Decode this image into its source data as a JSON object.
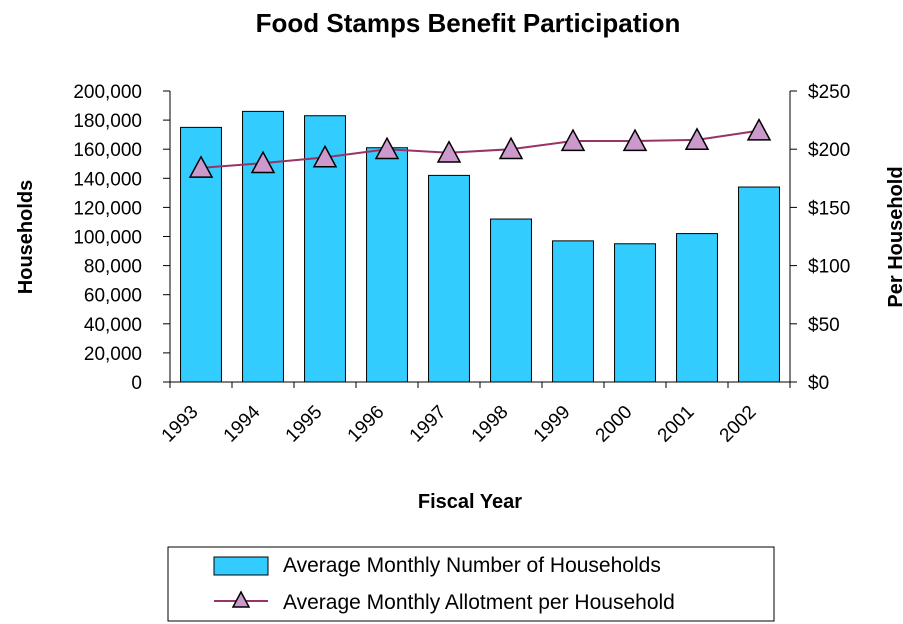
{
  "chart_data": {
    "type": "bar",
    "title": "Food Stamps Benefit Participation",
    "xlabel": "Fiscal Year",
    "ylabel": "Households",
    "y2label": "Per Household",
    "categories": [
      "1993",
      "1994",
      "1995",
      "1996",
      "1997",
      "1998",
      "1999",
      "2000",
      "2001",
      "2002"
    ],
    "ylim": [
      0,
      200000
    ],
    "y_ticks": [
      "200,000",
      "180,000",
      "160,000",
      "140,000",
      "120,000",
      "100,000",
      "80,000",
      "60,000",
      "40,000",
      "20,000",
      "0"
    ],
    "y2lim": [
      0,
      250
    ],
    "y2_ticks": [
      "$250",
      "$200",
      "$150",
      "$100",
      "$50",
      "$0"
    ],
    "series": [
      {
        "name": "Average Monthly Number of Households",
        "type": "bar",
        "axis": "left",
        "color": "#33CCFF",
        "values": [
          175000,
          186000,
          183000,
          161000,
          142000,
          112000,
          97000,
          95000,
          102000,
          134000
        ]
      },
      {
        "name": "Average Monthly Allotment per Household",
        "type": "line",
        "axis": "right",
        "color": "#993366",
        "marker_color": "#CC99CC",
        "marker": "triangle",
        "values": [
          184,
          188,
          193,
          200,
          197,
          200,
          207,
          207,
          208,
          216
        ]
      }
    ],
    "grid": false,
    "legend_position": "bottom"
  }
}
